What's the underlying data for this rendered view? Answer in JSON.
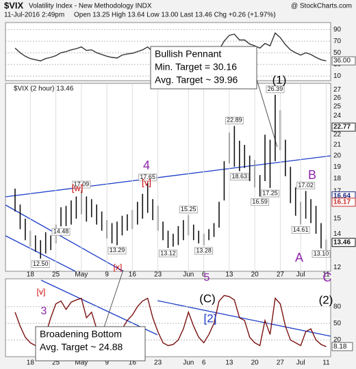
{
  "header": {
    "symbol": "$VIX",
    "name": "Volatility Index - New Methodology INDX",
    "date": "11-Jul-2016 2:49pm",
    "quote": "Open 13.25 High 13.64 Low 13.00 Last 13.46 Chg +0.26 (+1.97%)",
    "watermark": "@ StockCharts.com"
  },
  "chart_data": [
    {
      "type": "line",
      "color": "#333333",
      "ylim": [
        2,
        102
      ],
      "yticks": [
        90,
        70,
        50,
        30,
        10
      ],
      "grid": true,
      "values": [
        58,
        50,
        44,
        40,
        38,
        36,
        40,
        42,
        45,
        50,
        52,
        55,
        57,
        60,
        54,
        55,
        50,
        47,
        44,
        42,
        41,
        46,
        48,
        49,
        52,
        55,
        60,
        52,
        48,
        43,
        40,
        41,
        43,
        46,
        50,
        46,
        44,
        42,
        45,
        48,
        55,
        70,
        80,
        82,
        72,
        72,
        65,
        62,
        58,
        66,
        62,
        84,
        76,
        64,
        55,
        50,
        46,
        50,
        47,
        42,
        38,
        36
      ],
      "last_label": {
        "value": 36,
        "label": "36.00"
      }
    },
    {
      "type": "ohlc",
      "legend": "$VIX (2 hour) 13.46",
      "color": "#111111",
      "log": true,
      "ylim": [
        11.8,
        27.8
      ],
      "yticks": [
        12,
        14,
        15,
        17,
        18,
        19,
        20,
        21,
        22,
        24,
        25,
        26,
        27
      ],
      "xticks": [
        {
          "value": 3,
          "label": "18"
        },
        {
          "value": 8,
          "label": "25"
        },
        {
          "value": 13,
          "label": "May"
        },
        {
          "value": 18,
          "label": "9"
        },
        {
          "value": 23,
          "label": "16"
        },
        {
          "value": 28,
          "label": "23"
        },
        {
          "value": 34,
          "label": "Jun"
        },
        {
          "value": 37,
          "label": "6"
        },
        {
          "value": 42,
          "label": "13"
        },
        {
          "value": 47,
          "label": "20"
        },
        {
          "value": 52,
          "label": "27"
        },
        {
          "value": 56,
          "label": "Jul"
        },
        {
          "value": 61,
          "label": "11"
        }
      ],
      "low": [
        15.5,
        14.3,
        13.6,
        13.2,
        12.9,
        12.5,
        12.8,
        13.0,
        13.4,
        14.48,
        14.5,
        14.6,
        15.0,
        15.3,
        14.8,
        15.1,
        14.6,
        14.2,
        13.7,
        13.4,
        13.29,
        13.9,
        14.2,
        14.3,
        14.6,
        15.0,
        15.4,
        14.9,
        14.2,
        13.6,
        13.12,
        13.2,
        13.3,
        13.6,
        13.9,
        13.6,
        13.4,
        13.28,
        13.6,
        13.8,
        14.4,
        16.3,
        19.3,
        19.0,
        18.63,
        18.9,
        17.8,
        17.3,
        16.59,
        17.8,
        17.25,
        19.5,
        20.5,
        18.2,
        16.1,
        15.2,
        14.61,
        15.0,
        14.7,
        14.0,
        13.1,
        13.0
      ],
      "high": [
        17.2,
        16.0,
        15.0,
        14.2,
        13.9,
        13.6,
        14.1,
        13.9,
        14.6,
        15.8,
        15.9,
        16.3,
        16.6,
        17.09,
        16.6,
        16.4,
        16.0,
        15.5,
        14.9,
        14.7,
        14.8,
        15.2,
        15.3,
        15.6,
        16.2,
        16.8,
        17.65,
        16.4,
        15.9,
        14.8,
        14.2,
        14.0,
        14.5,
        14.9,
        15.25,
        14.6,
        14.2,
        14.0,
        14.3,
        14.7,
        16.2,
        19.5,
        22.2,
        22.89,
        21.4,
        21.0,
        20.0,
        19.6,
        18.3,
        22.0,
        21.5,
        26.39,
        24.6,
        21.5,
        19.0,
        17.3,
        16.2,
        17.02,
        16.4,
        15.9,
        14.7,
        13.64
      ],
      "price_labels": [
        {
          "value": 12.5,
          "label": "12.50"
        },
        {
          "value": 14.48,
          "label": "14.48"
        },
        {
          "value": 17.09,
          "label": "17.09"
        },
        {
          "value": 13.29,
          "label": "13.29"
        },
        {
          "value": 17.65,
          "label": "17.65"
        },
        {
          "value": 13.12,
          "label": "13.12"
        },
        {
          "value": 15.25,
          "label": "15.25"
        },
        {
          "value": 13.28,
          "label": "13.28"
        },
        {
          "value": 22.89,
          "label": "22.89"
        },
        {
          "value": 18.63,
          "label": "18.63"
        },
        {
          "value": 16.59,
          "label": "16.59"
        },
        {
          "value": 17.25,
          "label": "17.25"
        },
        {
          "value": 26.39,
          "label": "26.39"
        },
        {
          "value": 17.02,
          "label": "17.02"
        },
        {
          "value": 14.61,
          "label": "14.61"
        },
        {
          "value": 13.1,
          "label": "13.10"
        }
      ],
      "right_labels": [
        {
          "value": 22.77,
          "label": "22.77",
          "color": "#222222"
        },
        {
          "value": 16.64,
          "label": "16.64",
          "color": "#1a237e"
        },
        {
          "value": 16.17,
          "label": "16.17",
          "color": "#c62828"
        },
        {
          "value": 13.46,
          "label": "13.46",
          "color": "#111111"
        }
      ],
      "annotations": [
        [
          "Bullish Pennant",
          "Min. Target = 30.16",
          "Avg. Target ~ 39.96"
        ],
        [
          "Broadening Bottom",
          "Avg. Target ~ 24.88"
        ]
      ],
      "wave_labels": [
        {
          "text": "[w]",
          "color": "#cc0000"
        },
        {
          "text": "[v]",
          "color": "#cc0000"
        },
        {
          "text": "[x]",
          "color": "#cc0000"
        },
        {
          "text": "4",
          "color": "#8e24aa"
        },
        {
          "text": "5",
          "color": "#8e24aa"
        },
        {
          "text": "(1)",
          "color": "#000000"
        },
        {
          "text": "B",
          "color": "#8e24aa"
        },
        {
          "text": "A",
          "color": "#8e24aa"
        },
        {
          "text": "C",
          "color": "#8e24aa"
        },
        {
          "text": "[v]",
          "color": "#cc0000"
        },
        {
          "text": "3",
          "color": "#8e24aa"
        },
        {
          "text": "(C)",
          "color": "#000000"
        },
        {
          "text": "[2]",
          "color": "#1a3cc8"
        },
        {
          "text": "(2)",
          "color": "#000000"
        }
      ]
    },
    {
      "type": "line",
      "color": "#7a1010",
      "ylim": [
        -10,
        130
      ],
      "yticks": [
        80,
        50,
        20
      ],
      "grid": true,
      "values": [
        70,
        45,
        25,
        15,
        10,
        8,
        30,
        60,
        85,
        90,
        75,
        88,
        92,
        95,
        60,
        70,
        40,
        25,
        15,
        10,
        12,
        40,
        55,
        65,
        80,
        90,
        95,
        60,
        35,
        15,
        10,
        12,
        20,
        40,
        70,
        45,
        25,
        15,
        30,
        50,
        90,
        100,
        98,
        92,
        60,
        55,
        25,
        15,
        10,
        55,
        30,
        95,
        85,
        45,
        20,
        15,
        10,
        35,
        40,
        20,
        12,
        8.18
      ]
    }
  ]
}
